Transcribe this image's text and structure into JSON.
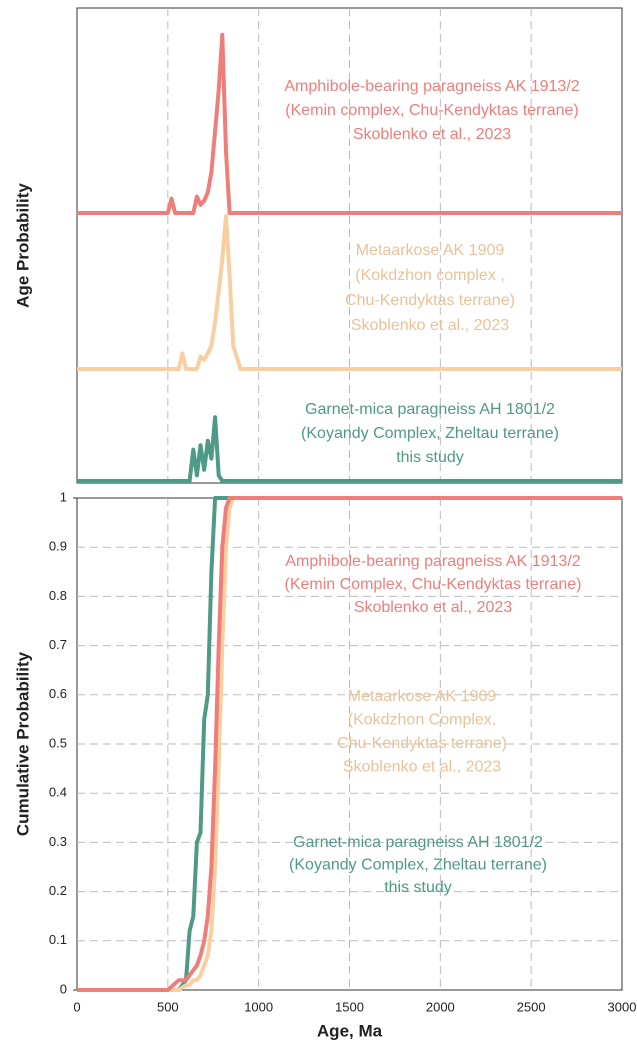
{
  "chart_data": [
    {
      "type": "line",
      "ylabel": "Age Probability",
      "xlim": [
        0,
        3000
      ],
      "xticks": [
        0,
        500,
        1000,
        1500,
        2000,
        2500,
        3000
      ],
      "ylim": [
        0,
        1
      ],
      "grid": true,
      "x": [
        0,
        480,
        500,
        520,
        540,
        560,
        580,
        600,
        620,
        640,
        660,
        680,
        700,
        720,
        740,
        760,
        780,
        800,
        820,
        840,
        860,
        900,
        3000
      ],
      "series": [
        {
          "color": "#ef7e7a",
          "values": [
            0,
            0,
            0,
            0.07,
            0,
            0,
            0,
            0,
            0,
            0,
            0.08,
            0.04,
            0.06,
            0.1,
            0.2,
            0.4,
            0.6,
            0.87,
            0.3,
            0,
            0,
            0,
            0
          ]
        },
        {
          "color": "#f8cfa0",
          "values": [
            0,
            0,
            0,
            0,
            0,
            0,
            0.1,
            0,
            0,
            0,
            0,
            0.08,
            0.06,
            0.1,
            0.15,
            0.3,
            0.5,
            0.7,
            0.98,
            0.6,
            0.15,
            0,
            0
          ]
        },
        {
          "color": "#4f9a86",
          "values": [
            0,
            0,
            0,
            0,
            0,
            0,
            0,
            0,
            0,
            0.28,
            0.05,
            0.32,
            0.1,
            0.36,
            0.2,
            0.57,
            0.05,
            0,
            0,
            0,
            0,
            0,
            0
          ]
        }
      ],
      "annotations": [
        {
          "color": "#ef7e7a",
          "lines": [
            "Amphibole-bearing paragneiss AK 1913/2",
            "(Kemin complex, Chu-Kendyktas terrane)",
            "Skoblenko et al., 2023"
          ]
        },
        {
          "color": "#e9c29a",
          "lines": [
            "Metaarkose  AK 1909",
            "(Kokdzhon complex ,",
            "Chu-Kendyktas terrane)",
            "Skoblenko et al., 2023"
          ]
        },
        {
          "color": "#4f9a86",
          "lines": [
            "Garnet-mica paragneiss AH 1801/2",
            "(Koyandy Complex, Zheltau terrane)",
            "this study"
          ]
        }
      ]
    },
    {
      "type": "line",
      "xlabel": "Age, Ma",
      "ylabel": "Cumulative Probability",
      "xlim": [
        0,
        3000
      ],
      "xticks": [
        0,
        500,
        1000,
        1500,
        2000,
        2500,
        3000
      ],
      "ylim": [
        0,
        1
      ],
      "yticks": [
        0,
        0.1,
        0.2,
        0.3,
        0.4,
        0.5,
        0.6,
        0.7,
        0.8,
        0.9,
        1
      ],
      "grid": true,
      "x": [
        0,
        500,
        560,
        600,
        620,
        640,
        660,
        680,
        700,
        720,
        740,
        760,
        780,
        800,
        820,
        840,
        860,
        900,
        3000
      ],
      "series": [
        {
          "color": "#4f9a86",
          "values": [
            0,
            0,
            0,
            0.02,
            0.12,
            0.15,
            0.3,
            0.32,
            0.55,
            0.6,
            0.85,
            1,
            1,
            1,
            1,
            1,
            1,
            1,
            1
          ]
        },
        {
          "color": "#f8cfa0",
          "values": [
            0,
            0,
            0,
            0.01,
            0.01,
            0.02,
            0.02,
            0.03,
            0.05,
            0.07,
            0.12,
            0.25,
            0.45,
            0.7,
            0.9,
            0.98,
            1,
            1,
            1
          ]
        },
        {
          "color": "#ef7e7a",
          "values": [
            0,
            0,
            0.02,
            0.02,
            0.03,
            0.04,
            0.05,
            0.07,
            0.1,
            0.15,
            0.25,
            0.45,
            0.7,
            0.9,
            0.98,
            1,
            1,
            1,
            1
          ]
        }
      ],
      "annotations": [
        {
          "color": "#ef7e7a",
          "lines": [
            "Amphibole-bearing paragneiss AK 1913/2",
            "(Kemin Complex, Chu-Kendyktas terrane)",
            "Skoblenko et al., 2023"
          ]
        },
        {
          "color": "#e9c29a",
          "lines": [
            "Metaarkose  AK 1909",
            "(Kokdzhon Complex,",
            "Chu-Kendyktas terrane)",
            "Skoblenko et al., 2023"
          ]
        },
        {
          "color": "#4f9a86",
          "lines": [
            "Garnet-mica paragneiss AH 1801/2",
            "(Koyandy Complex, Zheltau terrane)",
            "this study"
          ]
        }
      ]
    }
  ]
}
